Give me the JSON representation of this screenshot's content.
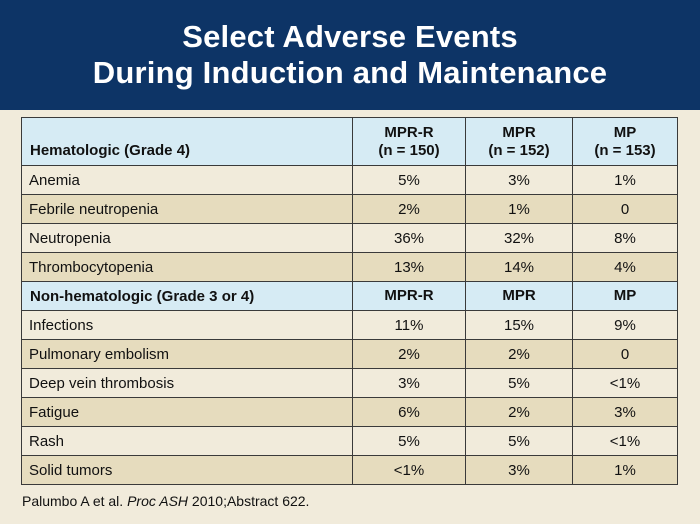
{
  "title": {
    "line1": "Select Adverse Events",
    "line2": "During Induction and Maintenance"
  },
  "table": {
    "section1": {
      "label": "Hematologic (Grade 4)",
      "columns": [
        {
          "name": "MPR-R",
          "n": "(n = 150)"
        },
        {
          "name": "MPR",
          "n": "(n = 152)"
        },
        {
          "name": "MP",
          "n": "(n = 153)"
        }
      ],
      "rows": [
        {
          "event": "Anemia",
          "values": [
            "5%",
            "3%",
            "1%"
          ]
        },
        {
          "event": "Febrile neutropenia",
          "values": [
            "2%",
            "1%",
            "0"
          ]
        },
        {
          "event": "Neutropenia",
          "values": [
            "36%",
            "32%",
            "8%"
          ]
        },
        {
          "event": "Thrombocytopenia",
          "values": [
            "13%",
            "14%",
            "4%"
          ]
        }
      ]
    },
    "section2": {
      "label": "Non-hematologic (Grade 3 or 4)",
      "columns": [
        "MPR-R",
        "MPR",
        "MP"
      ],
      "rows": [
        {
          "event": "Infections",
          "values": [
            "11%",
            "15%",
            "9%"
          ]
        },
        {
          "event": "Pulmonary embolism",
          "values": [
            "2%",
            "2%",
            "0"
          ]
        },
        {
          "event": "Deep vein thrombosis",
          "values": [
            "3%",
            "5%",
            "<1%"
          ]
        },
        {
          "event": "Fatigue",
          "values": [
            "6%",
            "2%",
            "3%"
          ]
        },
        {
          "event": "Rash",
          "values": [
            "5%",
            "5%",
            "<1%"
          ]
        },
        {
          "event": "Solid tumors",
          "values": [
            "<1%",
            "3%",
            "1%"
          ]
        }
      ]
    }
  },
  "citation": {
    "authors": "Palumbo A et al. ",
    "journal": "Proc ASH",
    "details": " 2010;Abstract 622."
  },
  "colors": {
    "title_band": "#0d3466",
    "header_fill": "#d6ebf4",
    "header_text": "#123d7a",
    "row_light": "#f1ebdb",
    "row_dark": "#e6dcbe"
  }
}
